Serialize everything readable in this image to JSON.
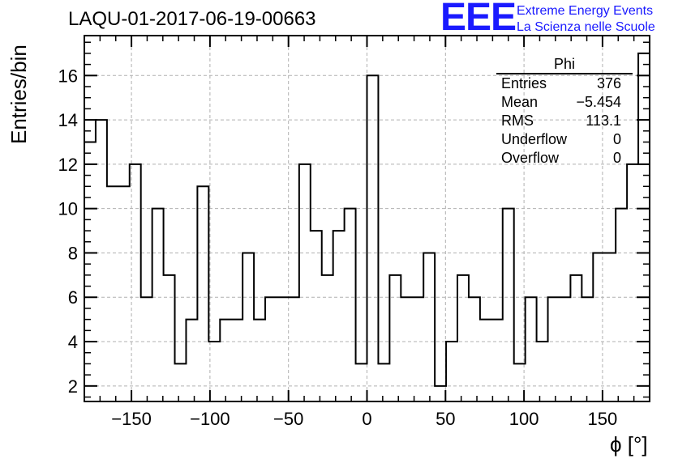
{
  "header": {
    "title": "LAQU-01-2017-06-19-00663",
    "logo": "EEE",
    "logo_line1": "Extreme Energy Events",
    "logo_line2": "La Scienza nelle Scuole",
    "logo_color": "#1a1aff"
  },
  "stats_box": {
    "name": "Phi",
    "rows": [
      {
        "label": "Entries",
        "value": "376"
      },
      {
        "label": "Mean",
        "value": "−5.454"
      },
      {
        "label": "RMS",
        "value": "113.1"
      },
      {
        "label": "Underflow",
        "value": "0"
      },
      {
        "label": "Overflow",
        "value": "0"
      }
    ]
  },
  "chart_data": {
    "type": "histogram",
    "title": "LAQU-01-2017-06-19-00663",
    "xlabel": "ϕ [°]",
    "ylabel": "Entries/bin",
    "xlim": [
      -180,
      180
    ],
    "ylim": [
      1.3,
      17.8
    ],
    "bin_width": 7.2,
    "x_ticks": [
      -150,
      -100,
      -50,
      0,
      50,
      100,
      150
    ],
    "x_tick_labels": [
      "−150",
      "−100",
      "−50",
      "0",
      "50",
      "100",
      "150"
    ],
    "y_ticks": [
      2,
      4,
      6,
      8,
      10,
      12,
      14,
      16
    ],
    "y_tick_labels": [
      "2",
      "4",
      "6",
      "8",
      "10",
      "12",
      "14",
      "16"
    ],
    "grid": true,
    "bin_contents": [
      13,
      14,
      11,
      11,
      12,
      6,
      10,
      7,
      3,
      5,
      11,
      4,
      5,
      5,
      8,
      5,
      6,
      6,
      6,
      12,
      9,
      7,
      9,
      10,
      3,
      16,
      3,
      7,
      6,
      6,
      8,
      2,
      4,
      7,
      6,
      5,
      5,
      10,
      3,
      6,
      4,
      6,
      6,
      7,
      6,
      8,
      8,
      10,
      12,
      17
    ]
  }
}
